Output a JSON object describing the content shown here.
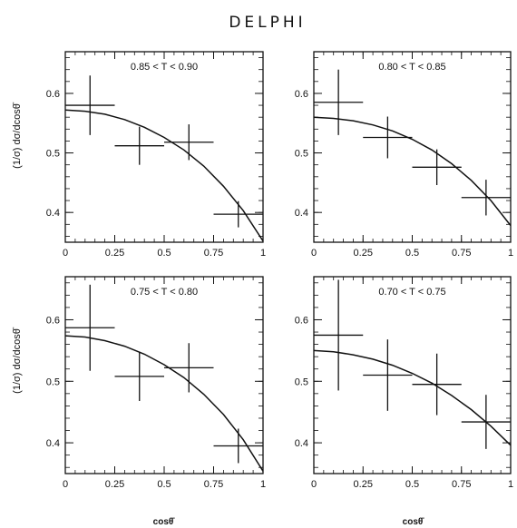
{
  "figure": {
    "title": "DELPHI",
    "ylabel": "(1/σ) dσ/dcosθ̄",
    "xlabel": "cosθ̄"
  },
  "chart_data": [
    {
      "type": "scatter",
      "panel_label": "0.85 < T < 0.90",
      "xlim": [
        0,
        1
      ],
      "ylim": [
        0.35,
        0.67
      ],
      "x_ticks": [
        "0",
        "0.25",
        "0.5",
        "0.75",
        "1"
      ],
      "y_ticks": [
        "0.4",
        "0.5",
        "0.6"
      ],
      "points": [
        {
          "x": 0.125,
          "xerr": 0.125,
          "y": 0.58,
          "yerr": 0.05
        },
        {
          "x": 0.375,
          "xerr": 0.125,
          "y": 0.512,
          "yerr": 0.032
        },
        {
          "x": 0.625,
          "xerr": 0.125,
          "y": 0.518,
          "yerr": 0.03
        },
        {
          "x": 0.875,
          "xerr": 0.125,
          "y": 0.397,
          "yerr": 0.022
        }
      ],
      "fit": [
        [
          0,
          0.572
        ],
        [
          0.1,
          0.57
        ],
        [
          0.2,
          0.565
        ],
        [
          0.3,
          0.556
        ],
        [
          0.4,
          0.543
        ],
        [
          0.5,
          0.526
        ],
        [
          0.6,
          0.505
        ],
        [
          0.7,
          0.478
        ],
        [
          0.8,
          0.444
        ],
        [
          0.9,
          0.403
        ],
        [
          1.0,
          0.352
        ]
      ]
    },
    {
      "type": "scatter",
      "panel_label": "0.80 < T < 0.85",
      "xlim": [
        0,
        1
      ],
      "ylim": [
        0.35,
        0.67
      ],
      "x_ticks": [
        "0",
        "0.25",
        "0.5",
        "0.75",
        "1"
      ],
      "y_ticks": [
        "0.4",
        "0.5",
        "0.6"
      ],
      "points": [
        {
          "x": 0.125,
          "xerr": 0.125,
          "y": 0.585,
          "yerr": 0.055
        },
        {
          "x": 0.375,
          "xerr": 0.125,
          "y": 0.526,
          "yerr": 0.035
        },
        {
          "x": 0.625,
          "xerr": 0.125,
          "y": 0.476,
          "yerr": 0.03
        },
        {
          "x": 0.875,
          "xerr": 0.125,
          "y": 0.425,
          "yerr": 0.03
        }
      ],
      "fit": [
        [
          0,
          0.56
        ],
        [
          0.1,
          0.558
        ],
        [
          0.2,
          0.554
        ],
        [
          0.3,
          0.547
        ],
        [
          0.4,
          0.537
        ],
        [
          0.5,
          0.523
        ],
        [
          0.6,
          0.505
        ],
        [
          0.7,
          0.482
        ],
        [
          0.8,
          0.454
        ],
        [
          0.9,
          0.42
        ],
        [
          1.0,
          0.378
        ]
      ]
    },
    {
      "type": "scatter",
      "panel_label": "0.75 < T < 0.80",
      "xlim": [
        0,
        1
      ],
      "ylim": [
        0.35,
        0.67
      ],
      "x_ticks": [
        "0",
        "0.25",
        "0.5",
        "0.75",
        "1"
      ],
      "y_ticks": [
        "0.4",
        "0.5",
        "0.6"
      ],
      "points": [
        {
          "x": 0.125,
          "xerr": 0.125,
          "y": 0.587,
          "yerr": 0.07
        },
        {
          "x": 0.375,
          "xerr": 0.125,
          "y": 0.508,
          "yerr": 0.04
        },
        {
          "x": 0.625,
          "xerr": 0.125,
          "y": 0.522,
          "yerr": 0.04
        },
        {
          "x": 0.875,
          "xerr": 0.125,
          "y": 0.395,
          "yerr": 0.028
        }
      ],
      "fit": [
        [
          0,
          0.574
        ],
        [
          0.1,
          0.572
        ],
        [
          0.2,
          0.566
        ],
        [
          0.3,
          0.557
        ],
        [
          0.4,
          0.544
        ],
        [
          0.5,
          0.527
        ],
        [
          0.6,
          0.506
        ],
        [
          0.7,
          0.479
        ],
        [
          0.8,
          0.446
        ],
        [
          0.9,
          0.405
        ],
        [
          1.0,
          0.354
        ]
      ]
    },
    {
      "type": "scatter",
      "panel_label": "0.70 < T < 0.75",
      "xlim": [
        0,
        1
      ],
      "ylim": [
        0.35,
        0.67
      ],
      "x_ticks": [
        "0",
        "0.25",
        "0.5",
        "0.75",
        "1"
      ],
      "y_ticks": [
        "0.4",
        "0.5",
        "0.6"
      ],
      "points": [
        {
          "x": 0.125,
          "xerr": 0.125,
          "y": 0.575,
          "yerr": 0.09
        },
        {
          "x": 0.375,
          "xerr": 0.125,
          "y": 0.51,
          "yerr": 0.058
        },
        {
          "x": 0.625,
          "xerr": 0.125,
          "y": 0.495,
          "yerr": 0.05
        },
        {
          "x": 0.875,
          "xerr": 0.125,
          "y": 0.434,
          "yerr": 0.044
        }
      ],
      "fit": [
        [
          0,
          0.55
        ],
        [
          0.1,
          0.548
        ],
        [
          0.2,
          0.543
        ],
        [
          0.3,
          0.536
        ],
        [
          0.4,
          0.526
        ],
        [
          0.5,
          0.513
        ],
        [
          0.6,
          0.497
        ],
        [
          0.7,
          0.477
        ],
        [
          0.8,
          0.454
        ],
        [
          0.9,
          0.427
        ],
        [
          1.0,
          0.396
        ]
      ]
    }
  ]
}
